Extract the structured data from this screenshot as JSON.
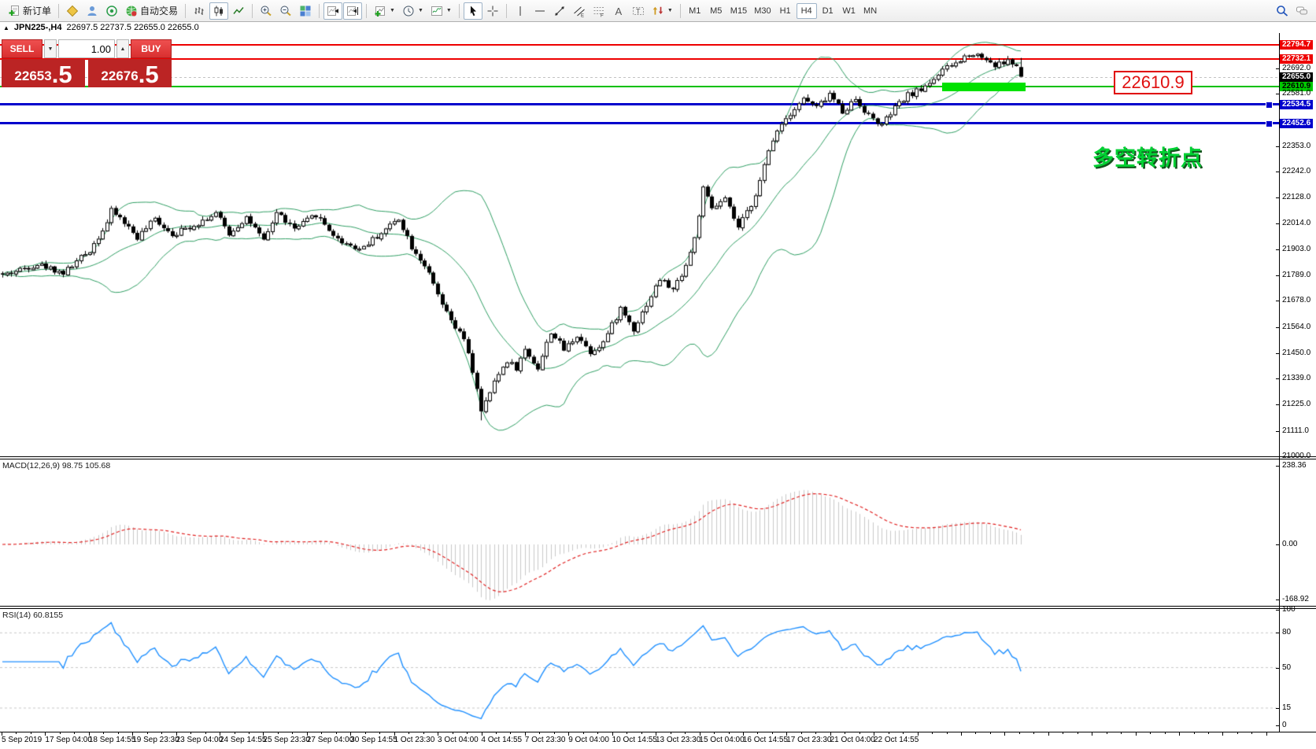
{
  "toolbar": {
    "items": [
      {
        "type": "button",
        "name": "new-order-button",
        "icon": "new-order-icon",
        "label": "新订单"
      },
      {
        "type": "sep"
      },
      {
        "type": "button",
        "name": "market-watch-button",
        "icon": "market-watch-icon"
      },
      {
        "type": "button",
        "name": "profiles-button",
        "icon": "profiles-icon"
      },
      {
        "type": "button",
        "name": "data-window-button",
        "icon": "data-window-icon"
      },
      {
        "type": "button",
        "name": "autotrading-button",
        "icon": "autotrade-icon",
        "label": "自动交易"
      },
      {
        "type": "sep"
      },
      {
        "type": "button",
        "name": "bar-chart-button",
        "icon": "bar-chart-icon"
      },
      {
        "type": "button",
        "name": "candlestick-chart-button",
        "icon": "candlestick-icon",
        "pressed": true
      },
      {
        "type": "button",
        "name": "line-chart-button",
        "icon": "line-chart-icon"
      },
      {
        "type": "sep"
      },
      {
        "type": "button",
        "name": "zoom-in-button",
        "icon": "zoom-in-icon"
      },
      {
        "type": "button",
        "name": "zoom-out-button",
        "icon": "zoom-out-icon"
      },
      {
        "type": "button",
        "name": "tile-windows-button",
        "icon": "tile-windows-icon"
      },
      {
        "type": "sep"
      },
      {
        "type": "button",
        "name": "auto-scroll-button",
        "icon": "auto-scroll-icon",
        "pressed": true
      },
      {
        "type": "button",
        "name": "chart-shift-button",
        "icon": "chart-shift-icon",
        "pressed": true
      },
      {
        "type": "sep"
      },
      {
        "type": "button",
        "name": "new-chart-button",
        "icon": "new-chart-icon",
        "caret": true
      },
      {
        "type": "button",
        "name": "periods-button",
        "icon": "periods-icon",
        "caret": true
      },
      {
        "type": "button",
        "name": "indicators-button",
        "icon": "indicators-icon",
        "caret": true
      },
      {
        "type": "sep"
      },
      {
        "type": "button",
        "name": "cursor-button",
        "icon": "cursor-icon",
        "pressed": true
      },
      {
        "type": "button",
        "name": "crosshair-button",
        "icon": "crosshair-icon"
      },
      {
        "type": "sep"
      },
      {
        "type": "button",
        "name": "vertical-line-button",
        "icon": "vertical-line-icon"
      },
      {
        "type": "button",
        "name": "horizontal-line-button",
        "icon": "horizontal-line-icon"
      },
      {
        "type": "button",
        "name": "trendline-button",
        "icon": "trendline-icon"
      },
      {
        "type": "button",
        "name": "channel-button",
        "icon": "channel-icon"
      },
      {
        "type": "button",
        "name": "fibonacci-button",
        "icon": "fibonacci-icon"
      },
      {
        "type": "button",
        "name": "text-button",
        "icon": "text-icon"
      },
      {
        "type": "button",
        "name": "text-label-button",
        "icon": "text-label-icon"
      },
      {
        "type": "button",
        "name": "arrows-button",
        "icon": "arrows-icon",
        "caret": true
      },
      {
        "type": "sep"
      },
      {
        "type": "timeframes"
      },
      {
        "type": "spacer"
      },
      {
        "type": "button",
        "name": "search-button",
        "icon": "search-icon"
      },
      {
        "type": "button",
        "name": "chat-button",
        "icon": "chat-icon"
      }
    ],
    "timeframes": [
      "M1",
      "M5",
      "M15",
      "M30",
      "H1",
      "H4",
      "D1",
      "W1",
      "MN"
    ],
    "active_timeframe": "H4"
  },
  "quote_bar": {
    "collapse_glyph": "▲",
    "symbol_period": "JPN225-,H4",
    "ohlc_text": "22697.5 22737.5 22655.0 22655.0"
  },
  "trade_panel": {
    "sell_label": "SELL",
    "buy_label": "BUY",
    "volume": "1.00",
    "spin_down_glyph": "▼",
    "spin_up_glyph": "▲",
    "sell_price_main": "22653",
    "sell_price_frac": ".5",
    "buy_price_main": "22676",
    "buy_price_frac": ".5"
  },
  "annotations": {
    "price_box": "22610.9",
    "turning_point": "多空转折点"
  },
  "chart_data": {
    "type": "candlestick",
    "symbol": "JPN225-",
    "timeframe": "H4",
    "last_bar_ohlc": {
      "open": 22697.5,
      "high": 22737.5,
      "low": 22655.0,
      "close": 22655.0
    },
    "current_price": 22655.0,
    "y_ticks": [
      "22353.0",
      "22242.0",
      "22128.0",
      "22014.0",
      "21903.0",
      "21789.0",
      "21678.0",
      "21564.0",
      "21450.0",
      "21339.0",
      "21225.0",
      "21111.0",
      "21000.0"
    ],
    "right_axis_labels": [
      {
        "value": "22794.7",
        "type": "red"
      },
      {
        "value": "22732.1",
        "type": "red"
      },
      {
        "value": "22692.0",
        "type": "plain"
      },
      {
        "value": "22655.0",
        "type": "current"
      },
      {
        "value": "22610.9",
        "type": "green"
      },
      {
        "value": "22581.0",
        "type": "plain"
      },
      {
        "value": "22534.5",
        "type": "blue"
      },
      {
        "value": "22452.6",
        "type": "blue"
      }
    ],
    "price_levels": [
      {
        "price": 22794.7,
        "color": "#ee0000",
        "width": 2,
        "handle": false
      },
      {
        "price": 22732.1,
        "color": "#ee0000",
        "width": 2,
        "handle": false
      },
      {
        "price": 22610.9,
        "color": "#00c000",
        "width": 2,
        "handle": false
      },
      {
        "price": 22534.5,
        "color": "#0000cc",
        "width": 3,
        "handle": true
      },
      {
        "price": 22452.6,
        "color": "#0000cc",
        "width": 3,
        "handle": true
      }
    ],
    "highlight_zone": {
      "price": 22610.9,
      "start_bar": 216,
      "end_bar": 235,
      "color": "#00e200"
    },
    "x_labels": [
      "5 Sep 2019",
      "17 Sep 04:00",
      "18 Sep 14:55",
      "19 Sep 23:30",
      "23 Sep 04:00",
      "24 Sep 14:55",
      "25 Sep 23:30",
      "27 Sep 04:00",
      "30 Sep 14:55",
      "1 Oct 23:30",
      "3 Oct 04:00",
      "4 Oct 14:55",
      "7 Oct 23:30",
      "9 Oct 04:00",
      "10 Oct 14:55",
      "13 Oct 23:30",
      "15 Oct 04:00",
      "16 Oct 14:55",
      "17 Oct 23:30",
      "21 Oct 04:00",
      "22 Oct 14:55"
    ],
    "bars_total": 235,
    "price_keyframes": [
      [
        0,
        21790
      ],
      [
        8,
        21840
      ],
      [
        14,
        21800
      ],
      [
        20,
        21900
      ],
      [
        24,
        22020
      ],
      [
        25,
        22070
      ],
      [
        27,
        22040
      ],
      [
        31,
        21955
      ],
      [
        35,
        22035
      ],
      [
        39,
        21970
      ],
      [
        44,
        22010
      ],
      [
        49,
        22060
      ],
      [
        52,
        21970
      ],
      [
        56,
        22045
      ],
      [
        60,
        21935
      ],
      [
        63,
        22065
      ],
      [
        67,
        21990
      ],
      [
        72,
        22055
      ],
      [
        77,
        21945
      ],
      [
        82,
        21905
      ],
      [
        86,
        21960
      ],
      [
        91,
        22040
      ],
      [
        94,
        21915
      ],
      [
        97,
        21835
      ],
      [
        100,
        21700
      ],
      [
        102,
        21620
      ],
      [
        104,
        21560
      ],
      [
        106,
        21510
      ],
      [
        109,
        21300
      ],
      [
        110,
        21190
      ],
      [
        112,
        21280
      ],
      [
        114,
        21360
      ],
      [
        116,
        21420
      ],
      [
        118,
        21385
      ],
      [
        120,
        21465
      ],
      [
        123,
        21385
      ],
      [
        126,
        21545
      ],
      [
        129,
        21465
      ],
      [
        132,
        21530
      ],
      [
        135,
        21455
      ],
      [
        138,
        21500
      ],
      [
        142,
        21645
      ],
      [
        145,
        21555
      ],
      [
        148,
        21665
      ],
      [
        151,
        21775
      ],
      [
        154,
        21725
      ],
      [
        157,
        21835
      ],
      [
        159,
        21950
      ],
      [
        161,
        22165
      ],
      [
        163,
        22080
      ],
      [
        166,
        22120
      ],
      [
        169,
        21995
      ],
      [
        172,
        22100
      ],
      [
        174,
        22200
      ],
      [
        176,
        22330
      ],
      [
        178,
        22430
      ],
      [
        181,
        22500
      ],
      [
        184,
        22560
      ],
      [
        187,
        22520
      ],
      [
        190,
        22580
      ],
      [
        193,
        22505
      ],
      [
        196,
        22560
      ],
      [
        199,
        22485
      ],
      [
        202,
        22445
      ],
      [
        205,
        22520
      ],
      [
        208,
        22575
      ],
      [
        211,
        22600
      ],
      [
        214,
        22650
      ],
      [
        217,
        22695
      ],
      [
        220,
        22725
      ],
      [
        222,
        22760
      ],
      [
        225,
        22745
      ],
      [
        228,
        22705
      ],
      [
        231,
        22725
      ],
      [
        233,
        22700
      ],
      [
        234,
        22655
      ]
    ],
    "indicators": {
      "bollinger": {
        "period": 20,
        "deviation": 2,
        "color": "#2f9e63"
      },
      "macd": {
        "label": "MACD(12,26,9) 98.75 105.68",
        "fast": 12,
        "slow": 26,
        "signal": 9,
        "axis_labels": [
          "238.36",
          "0.00",
          "-168.92"
        ],
        "histogram_color": "#c8c8c8",
        "signal_color": "#e02020"
      },
      "rsi": {
        "label": "RSI(14) 60.8155",
        "period": 14,
        "levels": [
          80,
          50,
          15
        ],
        "axis_labels": [
          "100",
          "80",
          "50",
          "15",
          "0"
        ],
        "line_color": "#2090ff",
        "level_color": "#c8c8c8"
      }
    }
  }
}
